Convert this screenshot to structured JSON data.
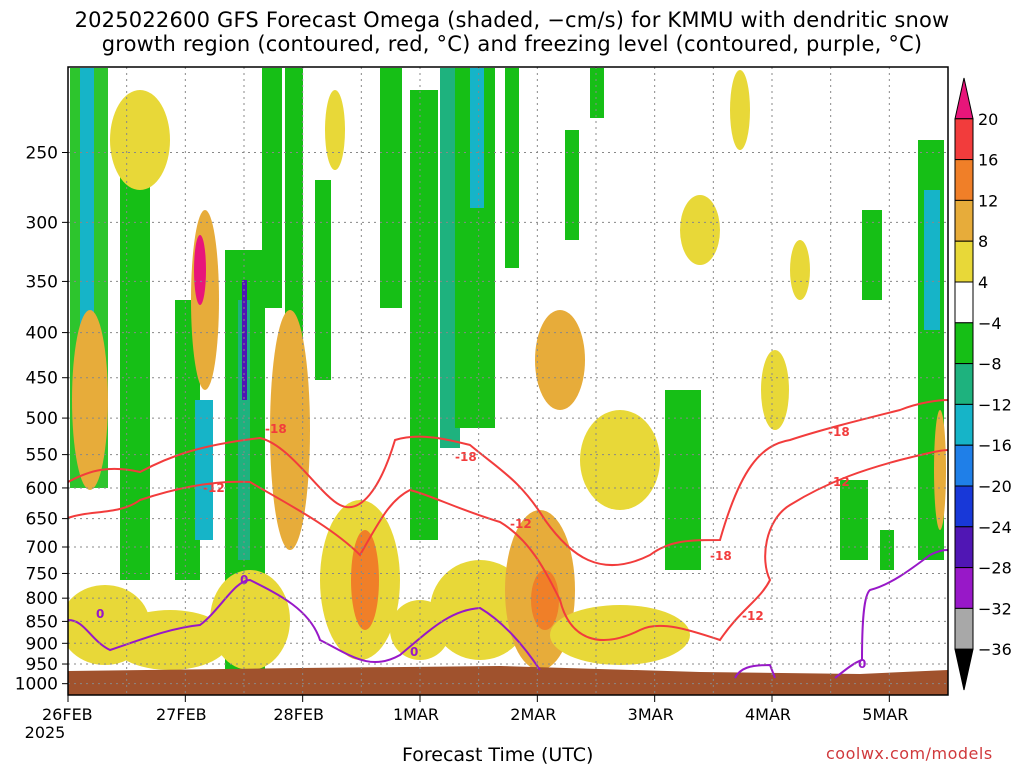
{
  "title_line1": "2025022600 GFS Forecast Omega (shaded, −cm/s) for KMMU with dendritic snow",
  "title_line2": "growth region (contoured, red, °C) and freezing level (contoured, purple, °C)",
  "credit": "coolwx.com/models",
  "chart_data": {
    "type": "heatmap",
    "xlabel": "Forecast Time (UTC)",
    "x_ticks": [
      "26FEB",
      "27FEB",
      "28FEB",
      "1MAR",
      "2MAR",
      "3MAR",
      "4MAR",
      "5MAR"
    ],
    "x_year": "2025",
    "xlim_days": [
      0,
      7.5
    ],
    "y_ticks": [
      250,
      300,
      350,
      400,
      450,
      500,
      550,
      600,
      650,
      700,
      750,
      800,
      850,
      900,
      950,
      1000
    ],
    "ylim": [
      200,
      1000
    ],
    "grid": true,
    "colorbar_levels": [
      20,
      16,
      12,
      8,
      4,
      -4,
      -8,
      -12,
      -16,
      -20,
      -24,
      -28,
      -32,
      -36
    ],
    "colorbar_colors": [
      "#e8157a",
      "#f23c3c",
      "#f07f28",
      "#e7ac3a",
      "#e8d838",
      "#ffffff",
      "#16bf16",
      "#1eb27e",
      "#16b4c8",
      "#1f7fe8",
      "#1838d8",
      "#5016b4",
      "#9818c8",
      "#a8a8a8",
      "#000000"
    ],
    "contour_labels_red": [
      "-18",
      "-12",
      "-18",
      "-12",
      "-18",
      "-12",
      "-18",
      "-12"
    ],
    "contour_labels_purple": [
      "0",
      "0",
      "0",
      "0"
    ],
    "terrain_color": "#a0522d"
  }
}
